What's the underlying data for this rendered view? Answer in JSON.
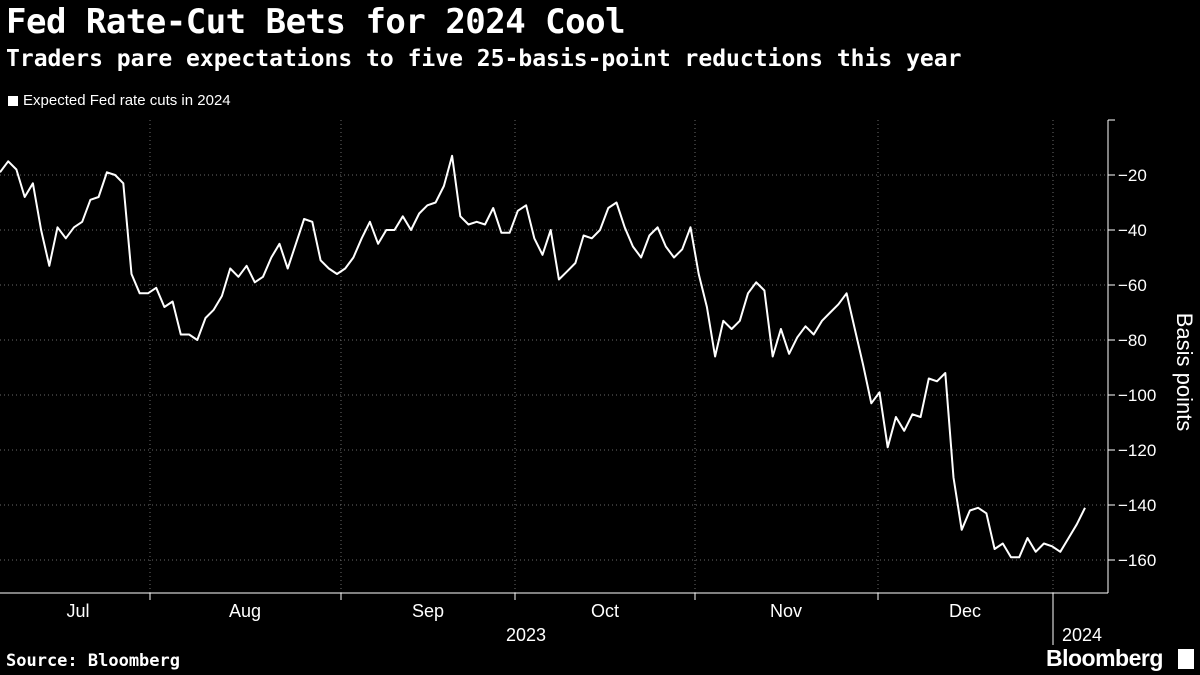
{
  "title": "Fed Rate-Cut Bets for 2024 Cool",
  "subtitle": "Traders pare expectations to five 25-basis-point reductions this year",
  "source": "Source: Bloomberg",
  "brand": "Bloomberg",
  "colors": {
    "background": "#000000",
    "line": "#ffffff",
    "grid": "#666666"
  },
  "chart_data": {
    "type": "line",
    "series": [
      {
        "name": "Expected Fed rate cuts in 2024",
        "values": [
          -19,
          -15,
          -18,
          -28,
          -23,
          -40,
          -53,
          -39,
          -43,
          -39,
          -37,
          -29,
          -28,
          -19,
          -20,
          -23,
          -56,
          -63,
          -63,
          -61,
          -68,
          -66,
          -78,
          -78,
          -80,
          -72,
          -69,
          -64,
          -54,
          -57,
          -53,
          -59,
          -57,
          -50,
          -45,
          -54,
          -45,
          -36,
          -37,
          -51,
          -54,
          -56,
          -54,
          -50,
          -43,
          -37,
          -45,
          -40,
          -40,
          -35,
          -40,
          -34,
          -31,
          -30,
          -24,
          -13,
          -35,
          -38,
          -37,
          -38,
          -32,
          -41,
          -41,
          -33,
          -31,
          -43,
          -49,
          -40,
          -58,
          -55,
          -52,
          -42,
          -43,
          -40,
          -32,
          -30,
          -39,
          -46,
          -50,
          -42,
          -39,
          -46,
          -50,
          -47,
          -39,
          -56,
          -68,
          -86,
          -73,
          -76,
          -73,
          -63,
          -59,
          -62,
          -86,
          -76,
          -85,
          -79,
          -75,
          -78,
          -73,
          -70,
          -67,
          -63,
          -76,
          -89,
          -103,
          -99,
          -119,
          -108,
          -113,
          -107,
          -108,
          -94,
          -95,
          -92,
          -130,
          -149,
          -142,
          -141,
          -143,
          -156,
          -154,
          -159,
          -159,
          -152,
          -157,
          -154,
          -155,
          -157,
          -152,
          -147,
          -141
        ]
      }
    ],
    "x_labels": [
      "Jul",
      "Aug",
      "Sep",
      "Oct",
      "Nov",
      "Dec"
    ],
    "year_labels": [
      "2023",
      "2024"
    ],
    "ylabel": "Basis points",
    "yticks": [
      -20,
      -40,
      -60,
      -80,
      -100,
      -120,
      -140,
      -160
    ],
    "ylim": [
      -172,
      0
    ],
    "grid": true,
    "legend_position": "top-left"
  }
}
